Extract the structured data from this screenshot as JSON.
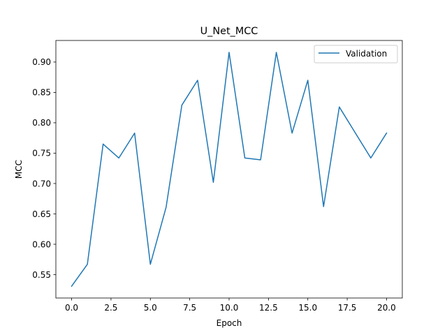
{
  "chart_data": {
    "type": "line",
    "title": "U_Net_MCC",
    "xlabel": "Epoch",
    "ylabel": "MCC",
    "xlim": [
      -1.0,
      21.0
    ],
    "ylim": [
      0.5115,
      0.9355
    ],
    "x_ticks": [
      0.0,
      2.5,
      5.0,
      7.5,
      10.0,
      12.5,
      15.0,
      17.5,
      20.0
    ],
    "x_tick_labels": [
      "0.0",
      "2.5",
      "5.0",
      "7.5",
      "10.0",
      "12.5",
      "15.0",
      "17.5",
      "20.0"
    ],
    "y_ticks": [
      0.55,
      0.6,
      0.65,
      0.7,
      0.75,
      0.8,
      0.85,
      0.9
    ],
    "y_tick_labels": [
      "0.55",
      "0.60",
      "0.65",
      "0.70",
      "0.75",
      "0.80",
      "0.85",
      "0.90"
    ],
    "grid": false,
    "legend_position": "top-right",
    "series": [
      {
        "name": "Validation",
        "color": "#1f77b4",
        "x": [
          0,
          1,
          2,
          3,
          4,
          5,
          6,
          7,
          8,
          9,
          10,
          11,
          12,
          13,
          14,
          15,
          16,
          17,
          18,
          19,
          20
        ],
        "y": [
          0.531,
          0.567,
          0.765,
          0.742,
          0.783,
          0.567,
          0.661,
          0.829,
          0.87,
          0.702,
          0.916,
          0.742,
          0.739,
          0.916,
          0.783,
          0.87,
          0.662,
          0.826,
          0.784,
          0.742,
          0.783
        ]
      }
    ]
  }
}
